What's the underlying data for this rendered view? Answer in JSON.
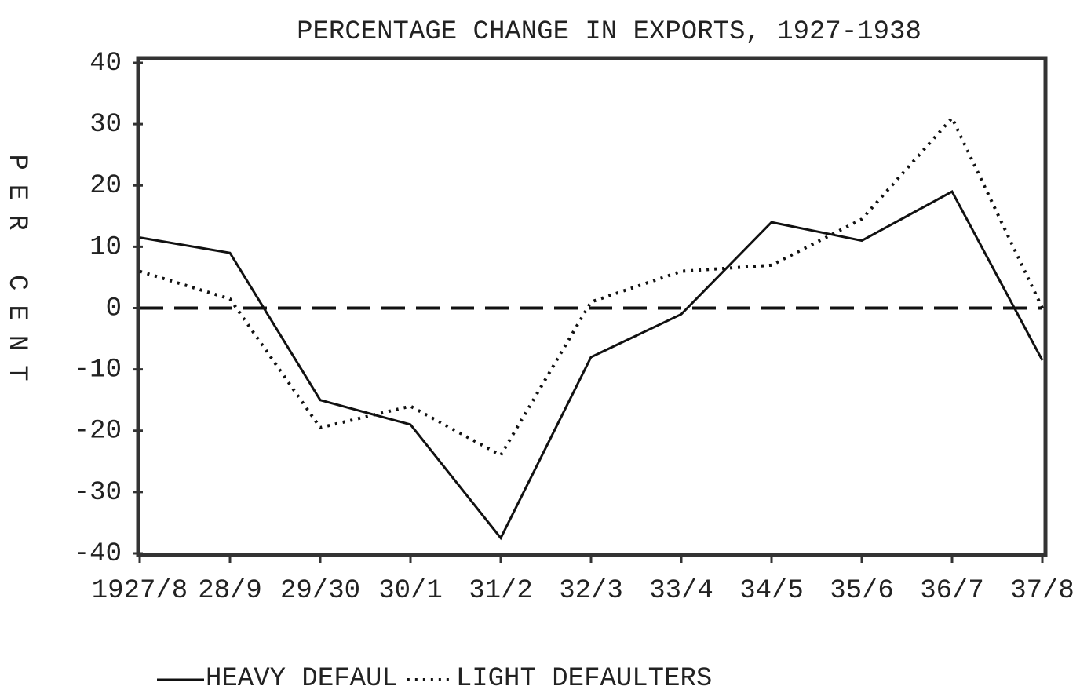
{
  "chart_data": {
    "type": "line",
    "title": "PERCENTAGE CHANGE IN EXPORTS, 1927-1938",
    "y_label": "PER CENT",
    "categories": [
      "1927/8",
      "28/9",
      "29/30",
      "30/1",
      "31/2",
      "32/3",
      "33/4",
      "34/5",
      "35/6",
      "36/7",
      "37/8"
    ],
    "series": [
      {
        "name": "HEAVY DEFAUL",
        "color": "#111111",
        "style": "solid",
        "values": [
          11.5,
          9,
          -15,
          -19,
          -37.5,
          -8,
          -1,
          14,
          11,
          19,
          -8.5
        ]
      },
      {
        "name": "LIGHT DEFAULTERS",
        "color": "#111111",
        "style": "dotted",
        "values": [
          6,
          1.5,
          -19.5,
          -16,
          -24,
          1,
          6,
          7,
          14.5,
          31,
          0
        ]
      }
    ],
    "ylim": [
      -40,
      40
    ],
    "yticks": [
      -40,
      -30,
      -20,
      -10,
      0,
      10,
      20,
      30,
      40
    ],
    "grid": false,
    "legend": "bottom"
  }
}
